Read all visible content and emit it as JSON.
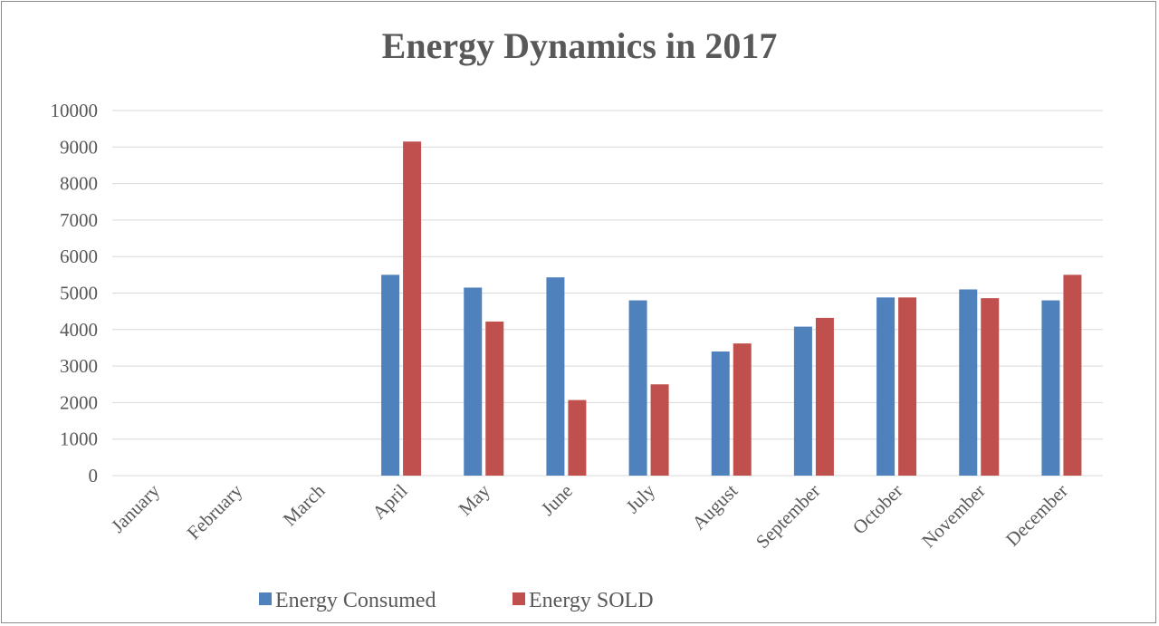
{
  "chart_data": {
    "type": "bar",
    "title": "Energy Dynamics in 2017",
    "xlabel": "",
    "ylabel": "",
    "categories": [
      "January",
      "February",
      "March",
      "April",
      "May",
      "June",
      "July",
      "August",
      "September",
      "October",
      "November",
      "December"
    ],
    "series": [
      {
        "name": "Energy Consumed",
        "color": "#4f81bd",
        "values": [
          0,
          0,
          0,
          5500,
          5150,
          5430,
          4800,
          3400,
          4080,
          4880,
          5100,
          4800
        ]
      },
      {
        "name": "Energy SOLD",
        "color": "#c0504d",
        "values": [
          0,
          0,
          0,
          9150,
          4220,
          2070,
          2500,
          3620,
          4320,
          4880,
          4860,
          5500
        ]
      }
    ],
    "ylim": [
      0,
      10000
    ],
    "yticks": [
      "0",
      "1000",
      "2000",
      "3000",
      "4000",
      "5000",
      "6000",
      "7000",
      "8000",
      "9000",
      "10000"
    ],
    "grid": true,
    "legend_position": "bottom"
  }
}
